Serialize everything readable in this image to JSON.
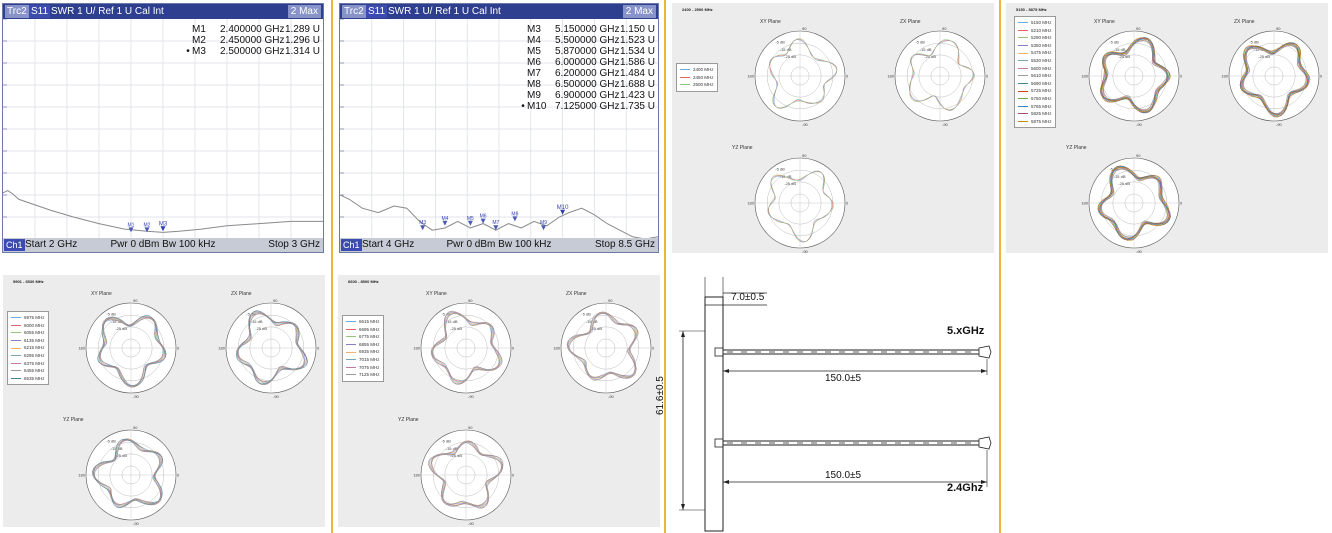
{
  "vna1": {
    "trc_tag": "Trc2",
    "s_tag": "S11",
    "trace_info": "SWR 1 U/ Ref 1 U Cal Int",
    "max": "2 Max",
    "markers": [
      {
        "name": "M1",
        "freq": "2.400000 GHz",
        "value": "1.289 U",
        "active": false
      },
      {
        "name": "M2",
        "freq": "2.450000 GHz",
        "value": "1.296 U",
        "active": false
      },
      {
        "name": "M3",
        "freq": "2.500000 GHz",
        "value": "1.314 U",
        "active": true
      }
    ],
    "plot_markers": [
      "M1",
      "M2",
      "M3"
    ],
    "channel": "Ch1",
    "start": "Start 2 GHz",
    "pwr": "Pwr 0 dBm Bw 100 kHz",
    "stop": "Stop 3 GHz"
  },
  "vna2": {
    "trc_tag": "Trc2",
    "s_tag": "S11",
    "trace_info": "SWR 1 U/ Ref 1 U Cal Int",
    "max": "2 Max",
    "markers": [
      {
        "name": "M3",
        "freq": "5.150000 GHz",
        "value": "1.150 U",
        "active": false
      },
      {
        "name": "M4",
        "freq": "5.500000 GHz",
        "value": "1.523 U",
        "active": false
      },
      {
        "name": "M5",
        "freq": "5.870000 GHz",
        "value": "1.534 U",
        "active": false
      },
      {
        "name": "M6",
        "freq": "6.000000 GHz",
        "value": "1.586 U",
        "active": false
      },
      {
        "name": "M7",
        "freq": "6.200000 GHz",
        "value": "1.484 U",
        "active": false
      },
      {
        "name": "M8",
        "freq": "6.500000 GHz",
        "value": "1.688 U",
        "active": false
      },
      {
        "name": "M9",
        "freq": "6.900000 GHz",
        "value": "1.423 U",
        "active": false
      },
      {
        "name": "M10",
        "freq": "7.125000 GHz",
        "value": "1.735 U",
        "active": true
      }
    ],
    "plot_markers": [
      "M3",
      "M4",
      "M5",
      "M6",
      "M7",
      "M8",
      "M9",
      "M10"
    ],
    "channel": "Ch1",
    "start": "Start 4 GHz",
    "pwr": "Pwr 0 dBm Bw 100 kHz",
    "stop": "Stop 8.5 GHz"
  },
  "polar_common": {
    "xy_plane": "XY Plane",
    "zx_plane": "ZX Plane",
    "yz_plane": "YZ Plane",
    "angle_top": "90",
    "angle_left": "180",
    "angle_right": "0",
    "angle_bottom": "-90",
    "ring_labels": [
      "-5 dB",
      "-15 dB",
      "-25 dB"
    ]
  },
  "polar_panels": [
    {
      "title": "2400 - 2500 MHz",
      "legend": [
        "2400 MHz",
        "2450 MHz",
        "2500 MHz"
      ]
    },
    {
      "title": "5150 - 5875 MHz",
      "legend": [
        "5150 MHz",
        "5210 MHz",
        "5290 MHz",
        "5350 MHz",
        "5475 MHz",
        "5530 MHz",
        "5600 MHz",
        "5610 MHz",
        "5690 MHz",
        "5725 MHz",
        "5750 MHz",
        "5765 MHz",
        "5825 MHz",
        "5875 MHz"
      ]
    },
    {
      "title": "5901 - 6530 MHz",
      "legend": [
        "5975 MHz",
        "6000 MHz",
        "6055 MHz",
        "6135 MHz",
        "6215 MHz",
        "6295 MHz",
        "6375 MHz",
        "6455 MHz",
        "6535 MHz"
      ]
    },
    {
      "title": "6600 - 8500 MHz",
      "legend": [
        "6615 MHz",
        "6695 MHz",
        "6775 MHz",
        "6855 MHz",
        "6935 MHz",
        "7015 MHz",
        "7075 MHz",
        "7125 MHz"
      ]
    }
  ],
  "legend_colors": [
    "#6fa8dc",
    "#e06666",
    "#93c47d",
    "#8e7cc3",
    "#f6b26b",
    "#76a5af",
    "#c27ba0",
    "#999999",
    "#45818e",
    "#cc4125",
    "#6aa84f",
    "#3d85c6",
    "#a64d79",
    "#bf9000"
  ],
  "drawing": {
    "dim_top": "7.0±0.5",
    "dim_side": "61.6±0.5",
    "dim_cable_1": "150.0±5",
    "dim_cable_2": "150.0±5",
    "label_5g": "5.xGHz",
    "label_24g": "2.4Ghz"
  }
}
